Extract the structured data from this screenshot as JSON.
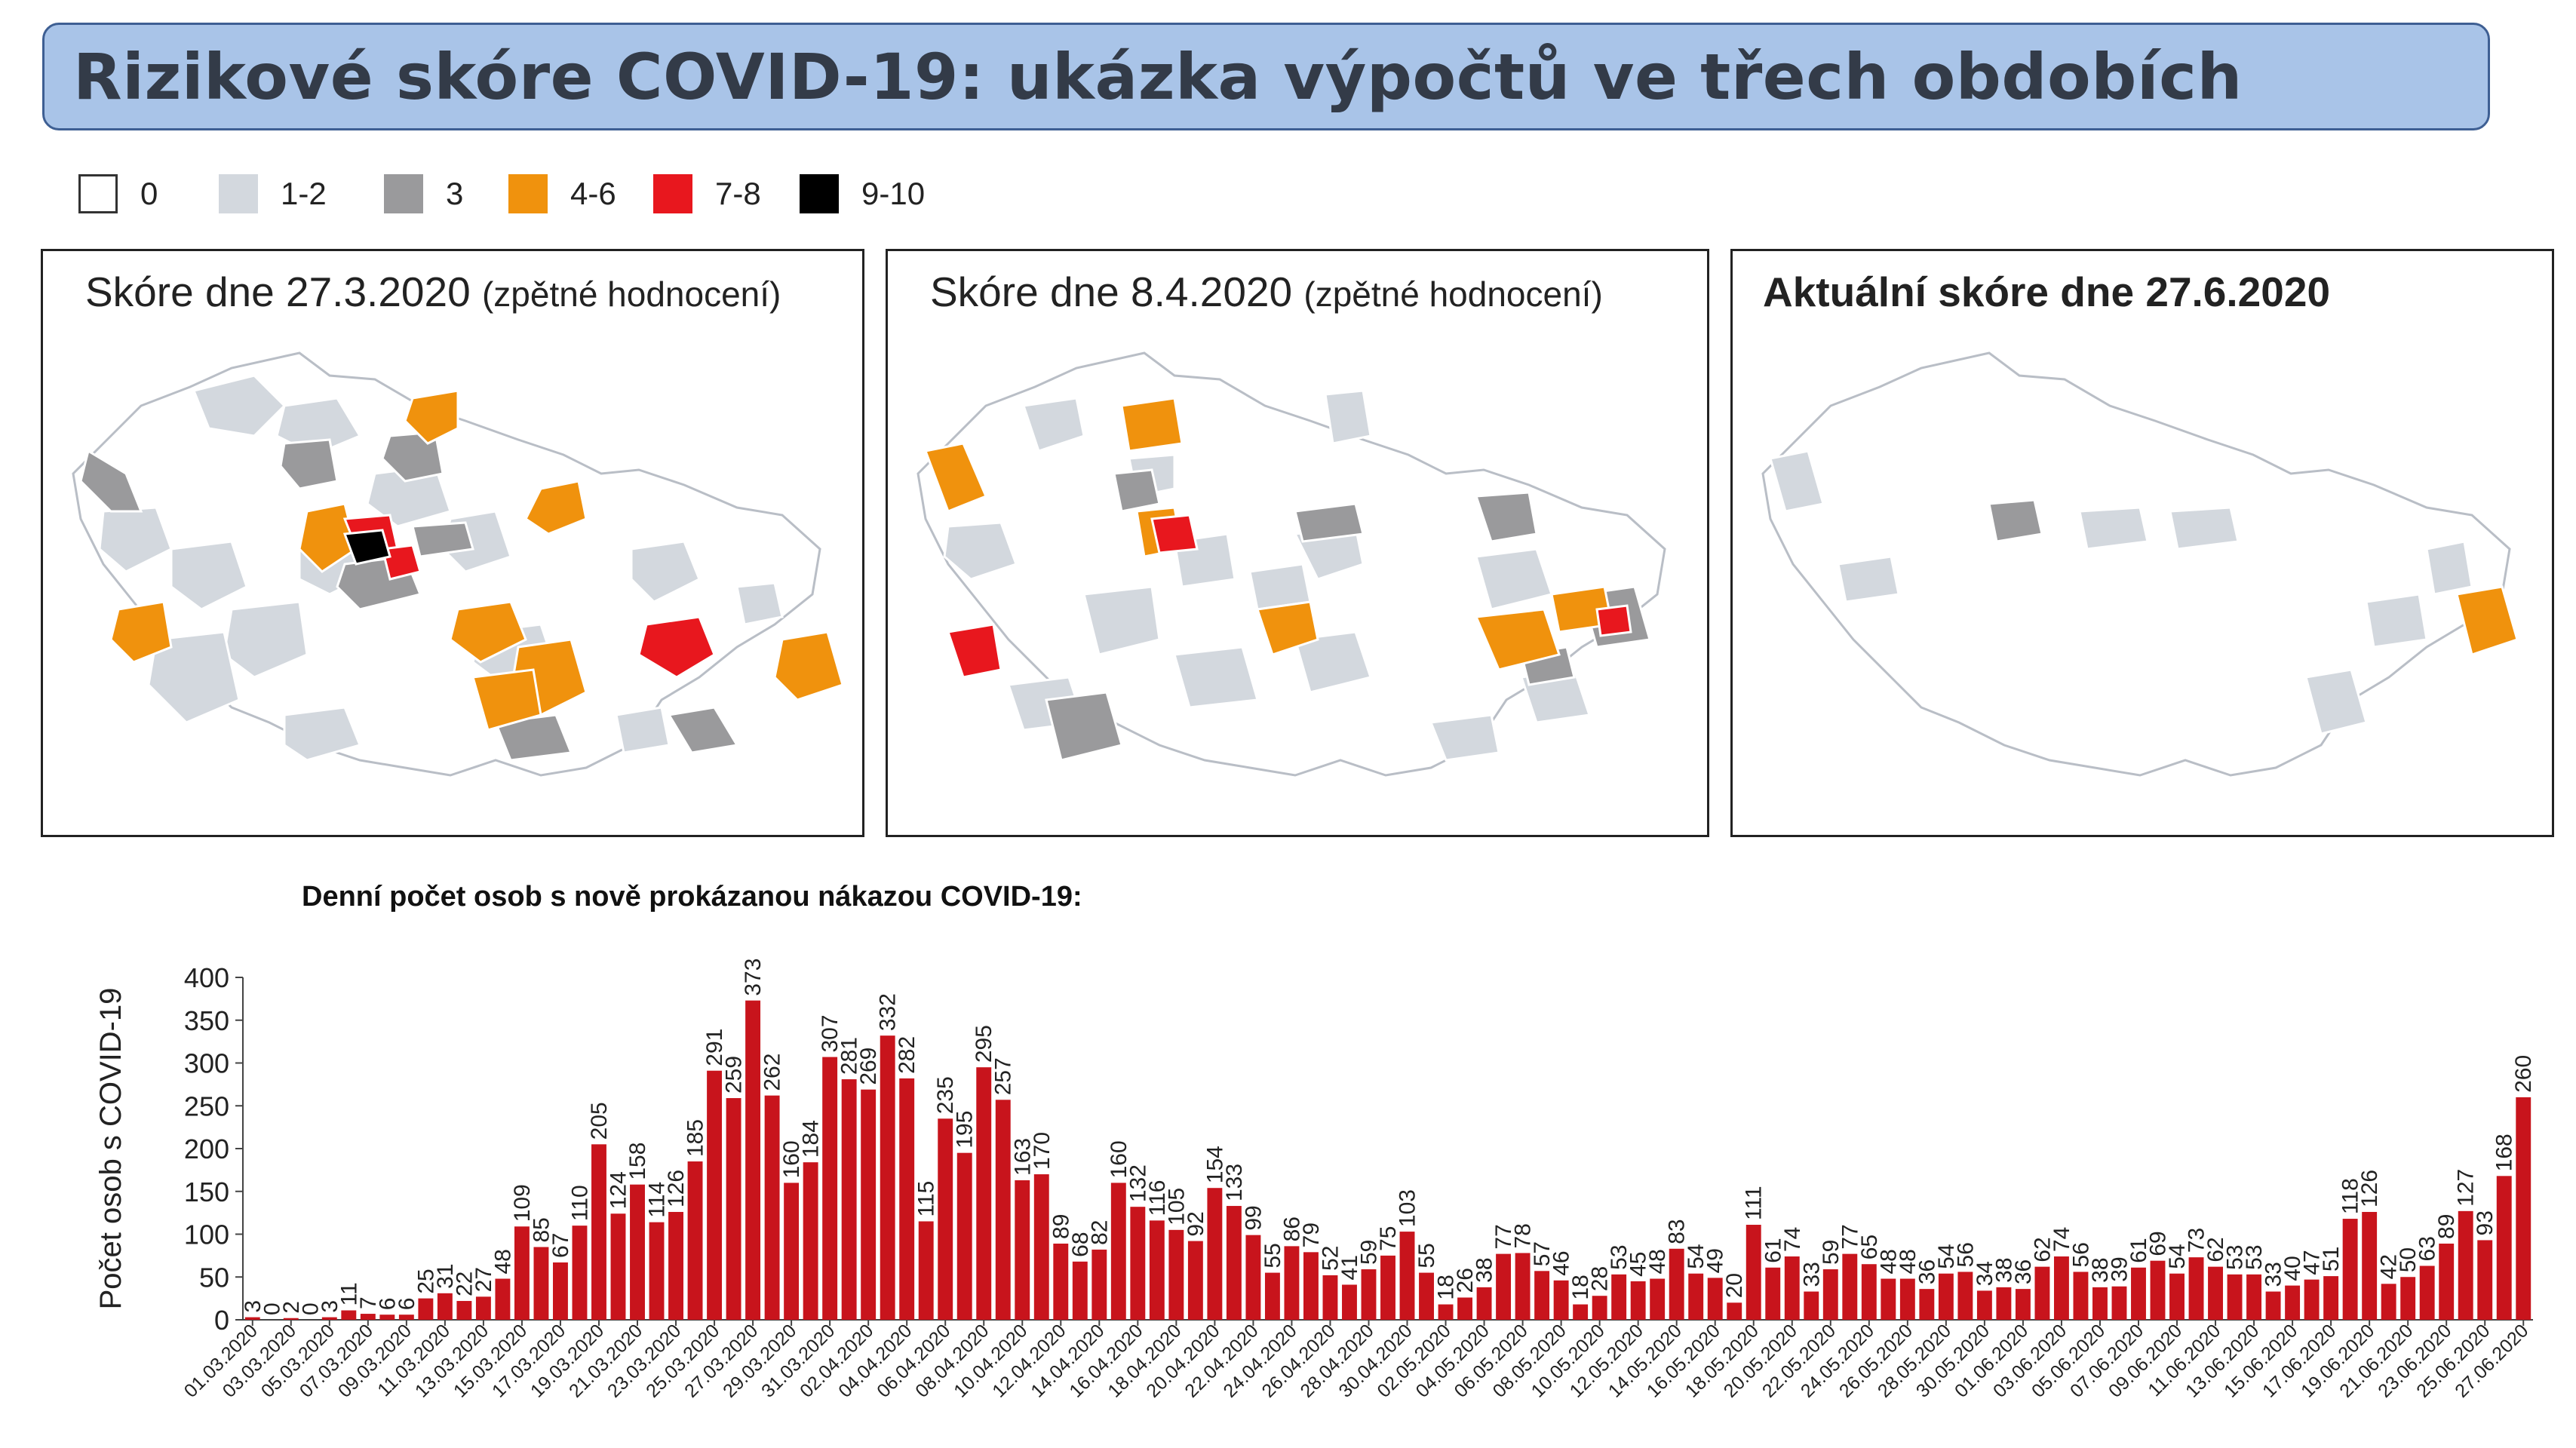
{
  "title": "Rizikové skóre COVID-19: ukázka výpočtů ve třech obdobích",
  "legend": [
    {
      "label": "0",
      "color": "#ffffff"
    },
    {
      "label": "1-2",
      "color": "#d3d8de"
    },
    {
      "label": "3",
      "color": "#9a9a9c"
    },
    {
      "label": "4-6",
      "color": "#f0920d"
    },
    {
      "label": "7-8",
      "color": "#e8171e"
    },
    {
      "label": "9-10",
      "color": "#000000"
    }
  ],
  "maps": [
    {
      "title": "Skóre dne 27.3.2020",
      "subtitle": "(zpětné hodnocení)"
    },
    {
      "title": "Skóre dne 8.4.2020",
      "subtitle": "(zpětné hodnocení)"
    },
    {
      "title": "Aktuální skóre dne 27.6.2020",
      "subtitle": ""
    }
  ],
  "chart_title": "Denní počet osob s nově prokázanou nákazou COVID-19:",
  "chart_data": {
    "type": "bar",
    "title": "Denní počet osob s nově prokázanou nákazou COVID-19:",
    "ylabel": "Počet osob s COVID-19",
    "ylim": [
      0,
      400
    ],
    "yticks": [
      "0",
      "50",
      "100",
      "150",
      "200",
      "250",
      "300",
      "350",
      "400"
    ],
    "bar_color": "#c8141c",
    "start_date": "2020-03-01",
    "tick_labels": [
      "01.03.2020",
      "03.03.2020",
      "05.03.2020",
      "07.03.2020",
      "09.03.2020",
      "11.03.2020",
      "13.03.2020",
      "15.03.2020",
      "17.03.2020",
      "19.03.2020",
      "21.03.2020",
      "23.03.2020",
      "25.03.2020",
      "27.03.2020",
      "29.03.2020",
      "31.03.2020",
      "02.04.2020",
      "04.04.2020",
      "06.04.2020",
      "08.04.2020",
      "10.04.2020",
      "12.04.2020",
      "14.04.2020",
      "16.04.2020",
      "18.04.2020",
      "20.04.2020",
      "22.04.2020",
      "24.04.2020",
      "26.04.2020",
      "28.04.2020",
      "30.04.2020",
      "02.05.2020",
      "04.05.2020",
      "06.05.2020",
      "08.05.2020",
      "10.05.2020",
      "12.05.2020",
      "14.05.2020",
      "16.05.2020",
      "18.05.2020",
      "20.05.2020",
      "22.05.2020",
      "24.05.2020",
      "26.05.2020",
      "28.05.2020",
      "30.05.2020",
      "01.06.2020",
      "03.06.2020",
      "05.06.2020",
      "07.06.2020",
      "09.06.2020",
      "11.06.2020",
      "13.06.2020",
      "15.06.2020",
      "17.06.2020",
      "19.06.2020",
      "21.06.2020",
      "23.06.2020",
      "25.06.2020",
      "27.06.2020"
    ],
    "values": [
      3,
      0,
      2,
      0,
      3,
      11,
      7,
      6,
      6,
      25,
      31,
      22,
      27,
      48,
      109,
      85,
      67,
      110,
      205,
      124,
      158,
      114,
      126,
      185,
      291,
      259,
      373,
      262,
      160,
      184,
      307,
      281,
      269,
      332,
      282,
      115,
      235,
      195,
      295,
      257,
      163,
      170,
      89,
      68,
      82,
      160,
      132,
      116,
      105,
      92,
      154,
      133,
      99,
      55,
      86,
      79,
      52,
      41,
      59,
      75,
      103,
      55,
      18,
      26,
      38,
      77,
      78,
      57,
      46,
      18,
      28,
      53,
      45,
      48,
      83,
      54,
      49,
      20,
      111,
      61,
      74,
      33,
      59,
      77,
      65,
      48,
      48,
      36,
      54,
      56,
      34,
      38,
      36,
      62,
      74,
      56,
      38,
      39,
      61,
      69,
      54,
      73,
      62,
      53,
      53,
      33,
      40,
      47,
      51,
      118,
      126,
      42,
      50,
      63,
      89,
      127,
      93,
      168,
      260
    ]
  }
}
